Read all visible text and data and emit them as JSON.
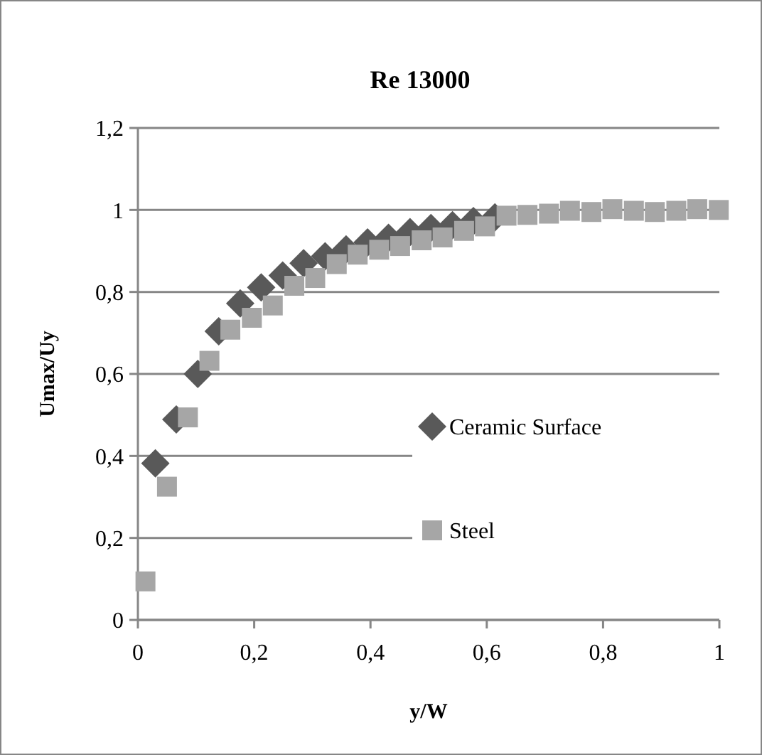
{
  "chart_data": {
    "type": "scatter",
    "title": "Re 13000",
    "xlabel": "y/W",
    "ylabel": "Umax/Uy",
    "xlim": [
      0,
      1
    ],
    "xticks": [
      {
        "value": 0,
        "label": "0"
      },
      {
        "value": 0.2,
        "label": "0,2"
      },
      {
        "value": 0.4,
        "label": "0,4"
      },
      {
        "value": 0.6,
        "label": "0,6"
      },
      {
        "value": 0.8,
        "label": "0,8"
      },
      {
        "value": 1,
        "label": "1"
      }
    ],
    "ylim": [
      0,
      1.2
    ],
    "yticks": [
      {
        "value": 0,
        "label": "0"
      },
      {
        "value": 0.2,
        "label": "0,2"
      },
      {
        "value": 0.4,
        "label": "0,4"
      },
      {
        "value": 0.6,
        "label": "0,6"
      },
      {
        "value": 0.8,
        "label": "0,8"
      },
      {
        "value": 1,
        "label": "1"
      },
      {
        "value": 1.2,
        "label": "1,2"
      }
    ],
    "grid": "y",
    "legend": "center",
    "series": [
      {
        "name": "Ceramic Surface",
        "color": "#595959",
        "marker": "diamond",
        "x": [
          0.03,
          0.066,
          0.103,
          0.139,
          0.176,
          0.212,
          0.249,
          0.285,
          0.322,
          0.358,
          0.395,
          0.431,
          0.468,
          0.504,
          0.541,
          0.577,
          0.614
        ],
        "values": [
          0.382,
          0.489,
          0.6,
          0.704,
          0.772,
          0.811,
          0.84,
          0.87,
          0.887,
          0.904,
          0.921,
          0.932,
          0.946,
          0.956,
          0.963,
          0.973,
          0.982
        ]
      },
      {
        "name": "Steel",
        "color": "#a6a6a6",
        "marker": "square",
        "x": [
          0.013,
          0.05,
          0.086,
          0.123,
          0.159,
          0.196,
          0.232,
          0.269,
          0.305,
          0.342,
          0.378,
          0.415,
          0.451,
          0.488,
          0.524,
          0.561,
          0.597,
          0.634,
          0.67,
          0.707,
          0.743,
          0.78,
          0.816,
          0.853,
          0.889,
          0.926,
          0.962,
          0.999
        ],
        "values": [
          0.094,
          0.325,
          0.494,
          0.632,
          0.708,
          0.737,
          0.767,
          0.815,
          0.834,
          0.868,
          0.891,
          0.903,
          0.912,
          0.926,
          0.933,
          0.949,
          0.96,
          0.986,
          0.988,
          0.991,
          0.998,
          0.995,
          1.002,
          0.998,
          0.995,
          0.998,
          1.002,
          1.0
        ]
      }
    ]
  }
}
